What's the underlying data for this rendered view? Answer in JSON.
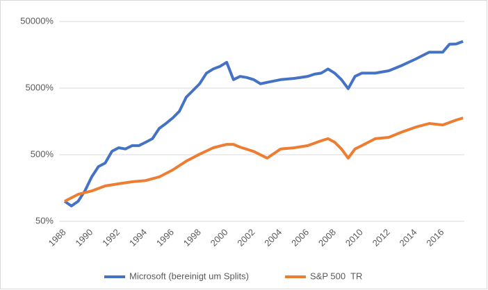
{
  "chart_data": {
    "type": "line",
    "log_y": true,
    "grid": true,
    "legend": "bottom",
    "ylim": [
      50,
      50000
    ],
    "yticks": [
      {
        "value": 50,
        "label": "50%"
      },
      {
        "value": 500,
        "label": "500%"
      },
      {
        "value": 5000,
        "label": "5000%"
      },
      {
        "value": 50000,
        "label": "50000%"
      }
    ],
    "xlim": [
      1988,
      2017.6
    ],
    "xticks": [
      1988,
      1990,
      1992,
      1994,
      1996,
      1998,
      2000,
      2002,
      2004,
      2006,
      2008,
      2010,
      2012,
      2014,
      2016
    ],
    "series": [
      {
        "name": "Microsoft (bereinigt um Splits)",
        "color": "#4472c4",
        "x": [
          1988,
          1988.5,
          1989,
          1989.5,
          1990,
          1990.5,
          1991,
          1991.5,
          1992,
          1992.5,
          1993,
          1993.5,
          1994,
          1994.5,
          1995,
          1995.5,
          1996,
          1996.5,
          1997,
          1997.5,
          1998,
          1998.5,
          1999,
          1999.5,
          2000,
          2000.5,
          2001,
          2001.5,
          2002,
          2002.5,
          2003,
          2004,
          2005,
          2006,
          2006.5,
          2007,
          2007.5,
          2008,
          2008.5,
          2009,
          2009.5,
          2010,
          2011,
          2012,
          2012.5,
          2013,
          2014,
          2015,
          2016,
          2016.5,
          2017,
          2017.5
        ],
        "values": [
          100,
          85,
          100,
          143,
          232,
          332,
          375,
          562,
          635,
          610,
          685,
          685,
          770,
          870,
          1240,
          1470,
          1780,
          2250,
          3640,
          4600,
          5830,
          8400,
          9700,
          10600,
          12200,
          6700,
          7500,
          7200,
          6700,
          5800,
          6100,
          6700,
          7000,
          7500,
          8100,
          8400,
          9700,
          8400,
          6700,
          4900,
          7500,
          8400,
          8400,
          9100,
          10000,
          11000,
          13700,
          17300,
          17300,
          22800,
          23000,
          25200
        ]
      },
      {
        "name": "S&P 500  TR",
        "color": "#ed7d31",
        "x": [
          1988,
          1989,
          1990,
          1991,
          1992,
          1993,
          1994,
          1995,
          1996,
          1997,
          1998,
          1999,
          2000,
          2000.5,
          2001,
          2002,
          2003,
          2004,
          2005,
          2006,
          2007,
          2007.5,
          2008,
          2008.5,
          2009,
          2009.5,
          2010,
          2011,
          2012,
          2013,
          2014,
          2015,
          2016,
          2017,
          2017.5
        ],
        "values": [
          100,
          127,
          143,
          170,
          183,
          196,
          205,
          232,
          295,
          400,
          510,
          635,
          715,
          715,
          650,
          560,
          445,
          610,
          635,
          685,
          810,
          870,
          770,
          610,
          445,
          610,
          685,
          870,
          910,
          1100,
          1300,
          1470,
          1400,
          1660,
          1780
        ]
      }
    ]
  }
}
